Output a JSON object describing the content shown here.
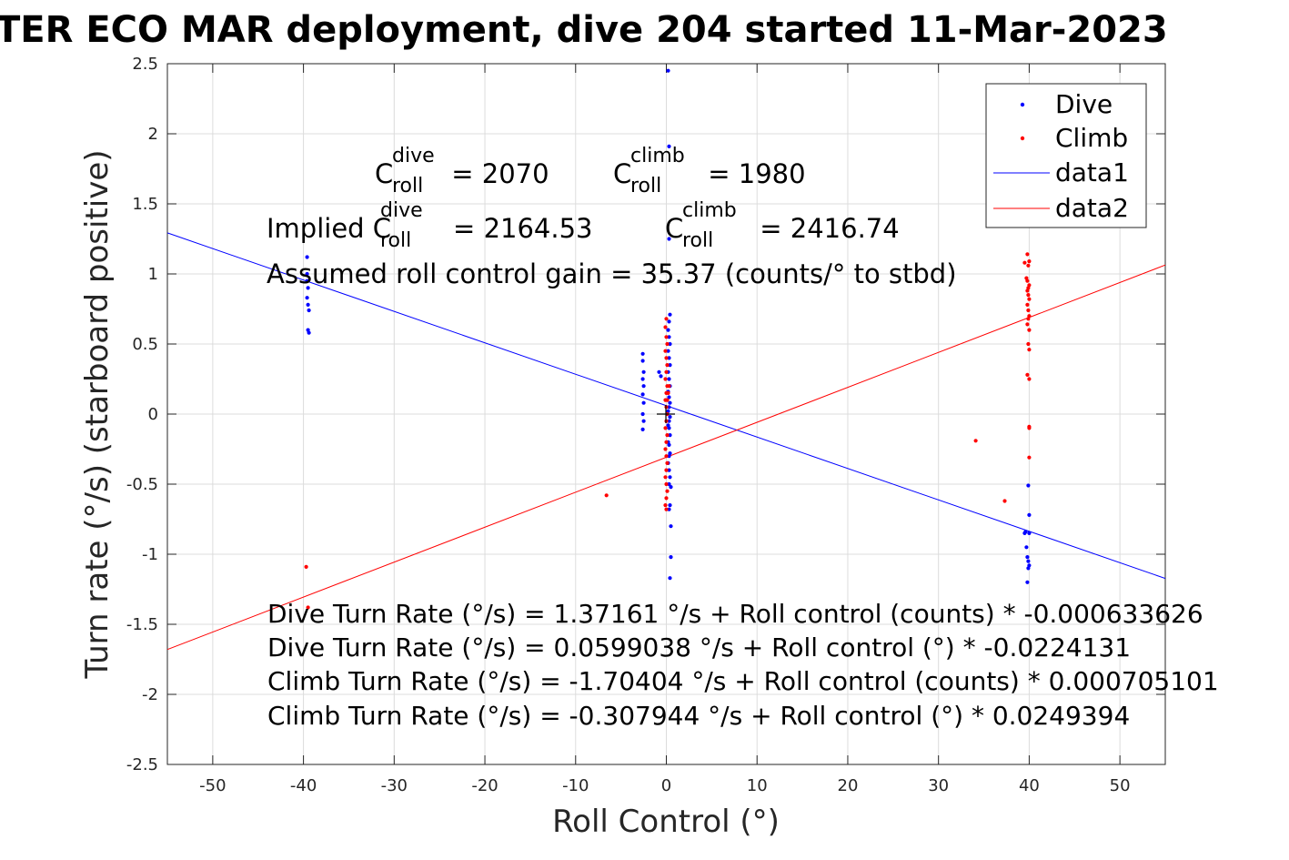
{
  "title": "TER ECO MAR deployment, dive 204 started 11-Mar-2023",
  "colors": {
    "dive": "#0000ff",
    "climb": "#ff0000",
    "grid": "#dcdcdc",
    "axis": "#262626"
  },
  "annotations": {
    "c_dive_label": "C",
    "c_dive_sup": "dive",
    "c_dive_sub": "roll",
    "c_dive_value": "= 2070",
    "c_climb_label": "C",
    "c_climb_sup": "climb",
    "c_climb_sub": "roll",
    "c_climb_value": "= 1980",
    "implied_prefix": "Implied C",
    "implied_dive_sup": "dive",
    "implied_dive_sub": "roll",
    "implied_dive_value": "= 2164.53",
    "implied_climb_label": "C",
    "implied_climb_sup": "climb",
    "implied_climb_sub": "roll",
    "implied_climb_value": "= 2416.74",
    "gain": "Assumed roll control gain = 35.37 (counts/° to stbd)",
    "eq1": "Dive Turn Rate (°/s) = 1.37161 °/s + Roll control (counts) * -0.000633626",
    "eq2": "Dive Turn Rate (°/s) = 0.0599038 °/s + Roll control (°) * -0.0224131",
    "eq3": "Climb Turn Rate (°/s) = -1.70404 °/s + Roll control (counts) * 0.000705101",
    "eq4": "Climb Turn Rate (°/s) = -0.307944 °/s + Roll control (°) * 0.0249394"
  },
  "chart_data": {
    "type": "scatter",
    "xlabel": "Roll Control (°)",
    "ylabel": "Turn rate (°/s) (starboard positive)",
    "xlim": [
      -55,
      55
    ],
    "ylim": [
      -2.5,
      2.5
    ],
    "xticks": [
      -50,
      -40,
      -30,
      -20,
      -10,
      0,
      10,
      20,
      30,
      40,
      50
    ],
    "yticks": [
      -2.5,
      -2,
      -1.5,
      -1,
      -0.5,
      0,
      0.5,
      1,
      1.5,
      2,
      2.5
    ],
    "grid": true,
    "legend_position": "top-right",
    "series": [
      {
        "name": "Dive",
        "kind": "points",
        "color": "#0000ff",
        "x": [
          -39.6,
          -39.6,
          -39.5,
          -39.6,
          -39.5,
          -39.4,
          -39.5,
          -39.4,
          -39.6,
          -2.6,
          -2.6,
          -2.5,
          -2.6,
          -2.5,
          -2.6,
          -2.5,
          -2.6,
          -2.5,
          -2.6,
          -0.8,
          -0.6,
          0.2,
          0.3,
          0.3,
          0.4,
          0.3,
          0.2,
          0.3,
          0.4,
          0.2,
          0.3,
          0.4,
          0.2,
          0.3,
          0.4,
          0.2,
          0.3,
          0.4,
          0.3,
          0.2,
          0.4,
          0.3,
          0.2,
          0.3,
          0.4,
          0.2,
          0.3,
          0.4,
          0.3,
          0.2,
          0.3,
          0.4,
          0.3,
          0.5,
          0.4,
          0.3,
          0.5,
          0.5,
          0.4,
          39.5,
          39.6,
          39.7,
          39.8,
          39.9,
          40.0,
          39.9,
          39.8,
          40.0,
          39.9,
          40.0
        ],
        "y": [
          1.12,
          1.0,
          0.9,
          0.83,
          0.78,
          0.74,
          0.6,
          0.58,
          0.95,
          0.43,
          0.38,
          0.3,
          0.25,
          0.2,
          0.14,
          0.08,
          0.0,
          -0.05,
          -0.11,
          0.3,
          0.27,
          2.45,
          1.91,
          1.25,
          0.71,
          0.66,
          0.6,
          0.55,
          0.5,
          0.45,
          0.4,
          0.35,
          0.3,
          0.25,
          0.2,
          0.16,
          0.12,
          0.08,
          0.05,
          0.02,
          -0.02,
          -0.05,
          -0.08,
          -0.1,
          -0.15,
          -0.2,
          -0.22,
          -0.28,
          -0.3,
          -0.35,
          -0.4,
          -0.45,
          -0.5,
          -0.52,
          -0.65,
          -0.68,
          -0.8,
          -1.02,
          -1.17,
          -0.85,
          -0.84,
          -0.95,
          -1.02,
          -1.05,
          -1.08,
          -1.1,
          -1.2,
          -0.72,
          -0.51,
          -0.85
        ]
      },
      {
        "name": "Climb",
        "kind": "points",
        "color": "#ff0000",
        "x": [
          -39.7,
          -39.5,
          -6.6,
          0.0,
          -0.1,
          0.0,
          0.1,
          -0.1,
          0.0,
          0.1,
          0.0,
          -0.1,
          0.1,
          0.0,
          -0.1,
          0.0,
          0.1,
          0.0,
          -0.1,
          0.1,
          0.0,
          -0.1,
          0.0,
          0.1,
          0.0,
          -0.1,
          0.0,
          0.1,
          0.0,
          -0.1,
          0.0,
          0.3,
          0.2,
          0.1,
          34.1,
          37.3,
          39.5,
          39.8,
          40.0,
          39.9,
          39.7,
          39.8,
          40.0,
          39.9,
          39.8,
          39.9,
          40.0,
          39.8,
          39.9,
          40.0,
          39.9,
          39.8,
          39.9,
          40.0,
          39.8,
          40.0,
          40.0,
          40.0,
          40.0,
          40.0
        ],
        "y": [
          -1.09,
          -1.38,
          -0.58,
          0.68,
          0.62,
          0.55,
          0.5,
          0.45,
          0.4,
          0.35,
          0.3,
          0.25,
          0.2,
          0.15,
          0.1,
          0.05,
          0.0,
          -0.05,
          -0.1,
          -0.15,
          -0.2,
          -0.25,
          -0.3,
          -0.35,
          -0.4,
          -0.45,
          -0.5,
          -0.55,
          -0.6,
          -0.65,
          -0.68,
          0.2,
          0.15,
          0.1,
          -0.19,
          -0.62,
          1.08,
          1.14,
          1.09,
          1.06,
          0.97,
          0.95,
          0.92,
          0.9,
          0.88,
          0.85,
          0.82,
          0.78,
          0.74,
          0.7,
          0.68,
          0.64,
          0.5,
          0.46,
          0.28,
          0.25,
          -0.09,
          -0.31,
          -0.1,
          0.6
        ]
      },
      {
        "name": "data1",
        "kind": "line",
        "color": "#0000ff",
        "x": [
          -55,
          55
        ],
        "y": [
          1.2927,
          -1.1729
        ]
      },
      {
        "name": "data2",
        "kind": "line",
        "color": "#ff0000",
        "x": [
          -55,
          55
        ],
        "y": [
          -1.6796,
          1.0638
        ]
      }
    ]
  }
}
